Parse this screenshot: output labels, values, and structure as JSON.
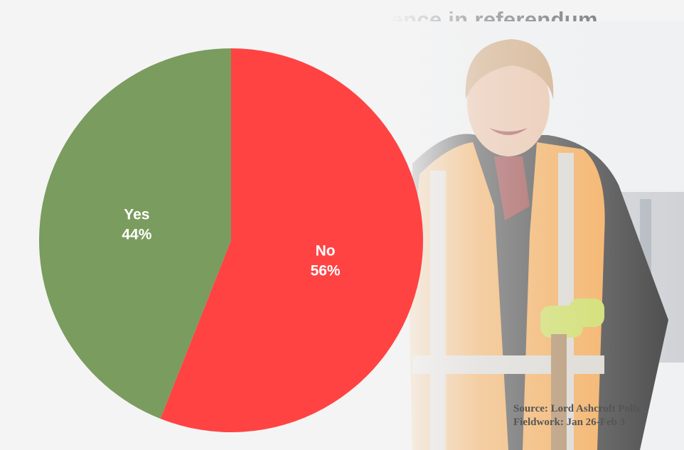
{
  "title": "Scots would reject independence in referendum",
  "chart_data": {
    "type": "pie",
    "slices": [
      {
        "label": "Yes",
        "value": 44,
        "display": "44%",
        "color": "#7a9c5e"
      },
      {
        "label": "No",
        "value": 56,
        "display": "56%",
        "color": "#ff4343"
      }
    ]
  },
  "source": {
    "line1": "Source: Lord Ashcroft Polls",
    "line2": "Fieldwork: Jan 26-Feb 3"
  }
}
